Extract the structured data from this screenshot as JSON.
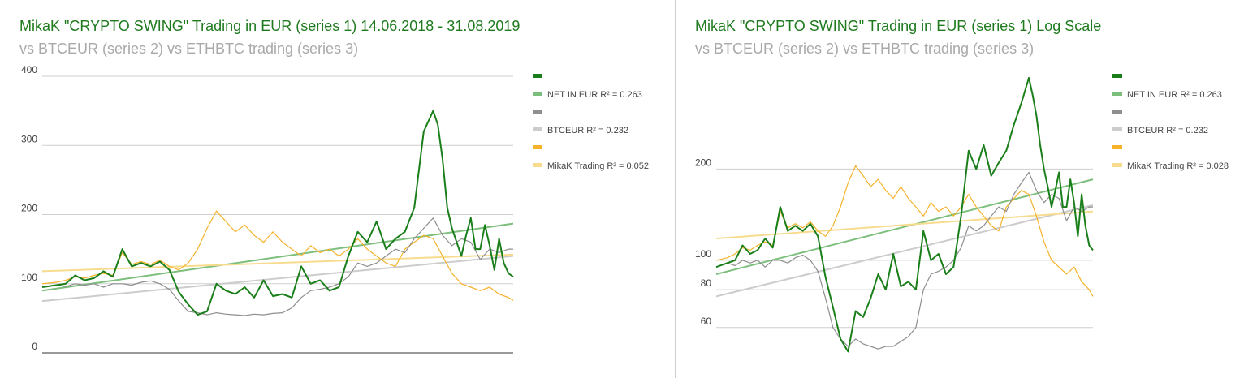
{
  "chart_data": [
    {
      "type": "line",
      "title": "MikaK \"CRYPTO SWING\" Trading in EUR (series 1) 14.06.2018 - 31.08.2019",
      "subtitle": "vs BTCEUR (series 2) vs ETHBTC trading (series 3)",
      "xlabel": "",
      "ylabel": "",
      "y_scale": "linear",
      "ylim": [
        0,
        400
      ],
      "y_ticks": [
        "400",
        "300",
        "200",
        "100",
        "0"
      ],
      "y_tick_values": [
        400,
        300,
        200,
        100,
        0
      ],
      "grid": true,
      "legend_position": "right",
      "legend": [
        "",
        "NET IN EUR R² = 0.263",
        "",
        "BTCEUR R² = 0.232",
        "",
        "MikaK Trading R² = 0.052"
      ],
      "x_index_range": [
        0,
        100
      ],
      "series": [
        {
          "name": "NET IN EUR",
          "color": "#1a7f1a",
          "trend": false,
          "x": [
            0,
            3,
            5,
            7,
            9,
            11,
            13,
            15,
            17,
            19,
            21,
            23,
            25,
            27,
            29,
            31,
            33,
            35,
            37,
            39,
            41,
            43,
            45,
            47,
            49,
            51,
            53,
            55,
            57,
            59,
            61,
            63,
            65,
            67,
            69,
            71,
            73,
            75,
            77,
            79,
            81,
            83,
            84,
            85,
            86,
            87,
            88,
            89,
            90,
            91,
            92,
            93,
            94,
            95,
            96,
            97,
            98,
            99,
            100
          ],
          "values": [
            95,
            98,
            100,
            112,
            105,
            108,
            118,
            110,
            150,
            125,
            130,
            125,
            132,
            120,
            88,
            70,
            55,
            60,
            100,
            90,
            85,
            95,
            80,
            105,
            82,
            85,
            80,
            125,
            100,
            105,
            90,
            95,
            140,
            175,
            160,
            190,
            150,
            165,
            175,
            210,
            320,
            350,
            330,
            280,
            210,
            180,
            160,
            140,
            170,
            195,
            150,
            150,
            185,
            155,
            120,
            165,
            130,
            115,
            110
          ]
        },
        {
          "name": "BTCEUR",
          "color": "#8e8e8e",
          "trend": false,
          "x": [
            0,
            3,
            5,
            7,
            9,
            11,
            13,
            15,
            17,
            19,
            21,
            23,
            25,
            27,
            29,
            31,
            33,
            35,
            37,
            39,
            41,
            43,
            45,
            47,
            49,
            51,
            53,
            55,
            57,
            59,
            61,
            63,
            65,
            67,
            69,
            71,
            73,
            75,
            77,
            79,
            81,
            83,
            85,
            87,
            89,
            91,
            93,
            95,
            97,
            99,
            100
          ],
          "values": [
            95,
            98,
            96,
            100,
            98,
            100,
            95,
            100,
            100,
            98,
            102,
            104,
            100,
            92,
            75,
            60,
            58,
            55,
            58,
            56,
            55,
            54,
            56,
            55,
            57,
            58,
            65,
            80,
            90,
            92,
            95,
            100,
            110,
            130,
            125,
            130,
            140,
            150,
            145,
            165,
            180,
            195,
            170,
            155,
            165,
            160,
            135,
            150,
            145,
            150,
            150
          ]
        },
        {
          "name": "MikaK Trading",
          "color": "#f5b22a",
          "trend": false,
          "x": [
            0,
            3,
            5,
            7,
            9,
            11,
            13,
            15,
            17,
            19,
            21,
            23,
            25,
            27,
            29,
            31,
            33,
            35,
            37,
            39,
            41,
            43,
            45,
            47,
            49,
            51,
            53,
            55,
            57,
            59,
            61,
            63,
            65,
            67,
            69,
            71,
            73,
            75,
            77,
            79,
            81,
            83,
            85,
            87,
            89,
            91,
            93,
            95,
            97,
            99,
            100
          ],
          "values": [
            100,
            102,
            105,
            110,
            108,
            112,
            115,
            112,
            145,
            128,
            132,
            128,
            134,
            125,
            120,
            130,
            150,
            180,
            205,
            190,
            175,
            185,
            170,
            160,
            175,
            160,
            150,
            140,
            155,
            145,
            150,
            140,
            150,
            165,
            150,
            140,
            130,
            125,
            150,
            160,
            170,
            165,
            140,
            115,
            100,
            95,
            90,
            95,
            85,
            80,
            76
          ]
        },
        {
          "name": "NET IN EUR trend",
          "color": "#7cbf7c",
          "trend": true,
          "x": [
            0,
            100
          ],
          "values": [
            90,
            187
          ]
        },
        {
          "name": "BTCEUR trend",
          "color": "#cccccc",
          "trend": true,
          "x": [
            0,
            100
          ],
          "values": [
            75,
            140
          ]
        },
        {
          "name": "MikaK Trading trend",
          "color": "#f7dc8f",
          "trend": true,
          "x": [
            0,
            100
          ],
          "values": [
            118,
            142
          ]
        }
      ]
    },
    {
      "type": "line",
      "title": "MikaK \"CRYPTO SWING\" Trading in EUR (series 1) Log Scale",
      "subtitle": "vs BTCEUR (series 2) vs ETHBTC trading (series 3)",
      "xlabel": "",
      "ylabel": "",
      "y_scale": "log",
      "ylim": [
        48,
        420
      ],
      "y_ticks": [
        "200",
        "100",
        "80",
        "60"
      ],
      "y_tick_values": [
        200,
        100,
        80,
        60
      ],
      "grid": true,
      "legend_position": "right",
      "legend": [
        "",
        "NET IN EUR R² = 0.263",
        "",
        "BTCEUR R² = 0.232",
        "",
        "MikaK Trading R² = 0.028"
      ],
      "x_index_range": [
        0,
        100
      ],
      "series": [
        {
          "name": "NET IN EUR",
          "color": "#1a7f1a",
          "trend": false,
          "x": [
            0,
            3,
            5,
            7,
            9,
            11,
            13,
            15,
            17,
            19,
            21,
            23,
            25,
            27,
            29,
            31,
            33,
            35,
            37,
            39,
            41,
            43,
            45,
            47,
            49,
            51,
            53,
            55,
            57,
            59,
            61,
            63,
            65,
            67,
            69,
            71,
            73,
            75,
            77,
            79,
            81,
            83,
            84,
            85,
            86,
            87,
            88,
            89,
            90,
            91,
            92,
            93,
            94,
            95,
            96,
            97,
            98,
            99,
            100
          ],
          "values": [
            95,
            98,
            100,
            112,
            105,
            108,
            118,
            110,
            150,
            125,
            130,
            125,
            132,
            120,
            88,
            70,
            55,
            50,
            68,
            65,
            75,
            90,
            80,
            105,
            82,
            85,
            80,
            125,
            100,
            105,
            90,
            95,
            140,
            230,
            200,
            240,
            190,
            210,
            230,
            280,
            330,
            400,
            350,
            300,
            240,
            200,
            175,
            150,
            170,
            195,
            150,
            150,
            185,
            155,
            120,
            165,
            130,
            112,
            108
          ]
        },
        {
          "name": "BTCEUR",
          "color": "#8e8e8e",
          "trend": false,
          "x": [
            0,
            3,
            5,
            7,
            9,
            11,
            13,
            15,
            17,
            19,
            21,
            23,
            25,
            27,
            29,
            31,
            33,
            35,
            37,
            39,
            41,
            43,
            45,
            47,
            49,
            51,
            53,
            55,
            57,
            59,
            61,
            63,
            65,
            67,
            69,
            71,
            73,
            75,
            77,
            79,
            81,
            83,
            85,
            87,
            89,
            91,
            93,
            95,
            97,
            99,
            100
          ],
          "values": [
            95,
            98,
            96,
            100,
            98,
            100,
            95,
            100,
            100,
            98,
            102,
            104,
            100,
            92,
            75,
            60,
            55,
            52,
            55,
            53,
            52,
            51,
            52,
            52,
            54,
            56,
            60,
            80,
            90,
            92,
            95,
            100,
            110,
            130,
            125,
            130,
            140,
            150,
            145,
            165,
            180,
            195,
            170,
            155,
            165,
            160,
            135,
            150,
            145,
            150,
            150
          ]
        },
        {
          "name": "MikaK Trading",
          "color": "#f5b22a",
          "trend": false,
          "x": [
            0,
            3,
            5,
            7,
            9,
            11,
            13,
            15,
            17,
            19,
            21,
            23,
            25,
            27,
            29,
            31,
            33,
            35,
            37,
            39,
            41,
            43,
            45,
            47,
            49,
            51,
            53,
            55,
            57,
            59,
            61,
            63,
            65,
            67,
            69,
            71,
            73,
            75,
            77,
            79,
            81,
            83,
            85,
            87,
            89,
            91,
            93,
            95,
            97,
            99,
            100
          ],
          "values": [
            100,
            102,
            105,
            110,
            108,
            112,
            115,
            112,
            145,
            128,
            132,
            128,
            134,
            125,
            120,
            130,
            150,
            180,
            205,
            190,
            175,
            185,
            170,
            160,
            175,
            160,
            150,
            140,
            155,
            145,
            150,
            140,
            150,
            165,
            150,
            140,
            130,
            125,
            150,
            160,
            170,
            165,
            140,
            115,
            100,
            95,
            90,
            95,
            85,
            80,
            76
          ]
        },
        {
          "name": "NET IN EUR trend",
          "color": "#7cbf7c",
          "trend": true,
          "x": [
            0,
            100
          ],
          "values": [
            90,
            185
          ]
        },
        {
          "name": "BTCEUR trend",
          "color": "#cccccc",
          "trend": true,
          "x": [
            0,
            100
          ],
          "values": [
            76,
            152
          ]
        },
        {
          "name": "MikaK Trading trend",
          "color": "#f7dc8f",
          "trend": true,
          "x": [
            0,
            100
          ],
          "values": [
            118,
            145
          ]
        }
      ]
    }
  ]
}
